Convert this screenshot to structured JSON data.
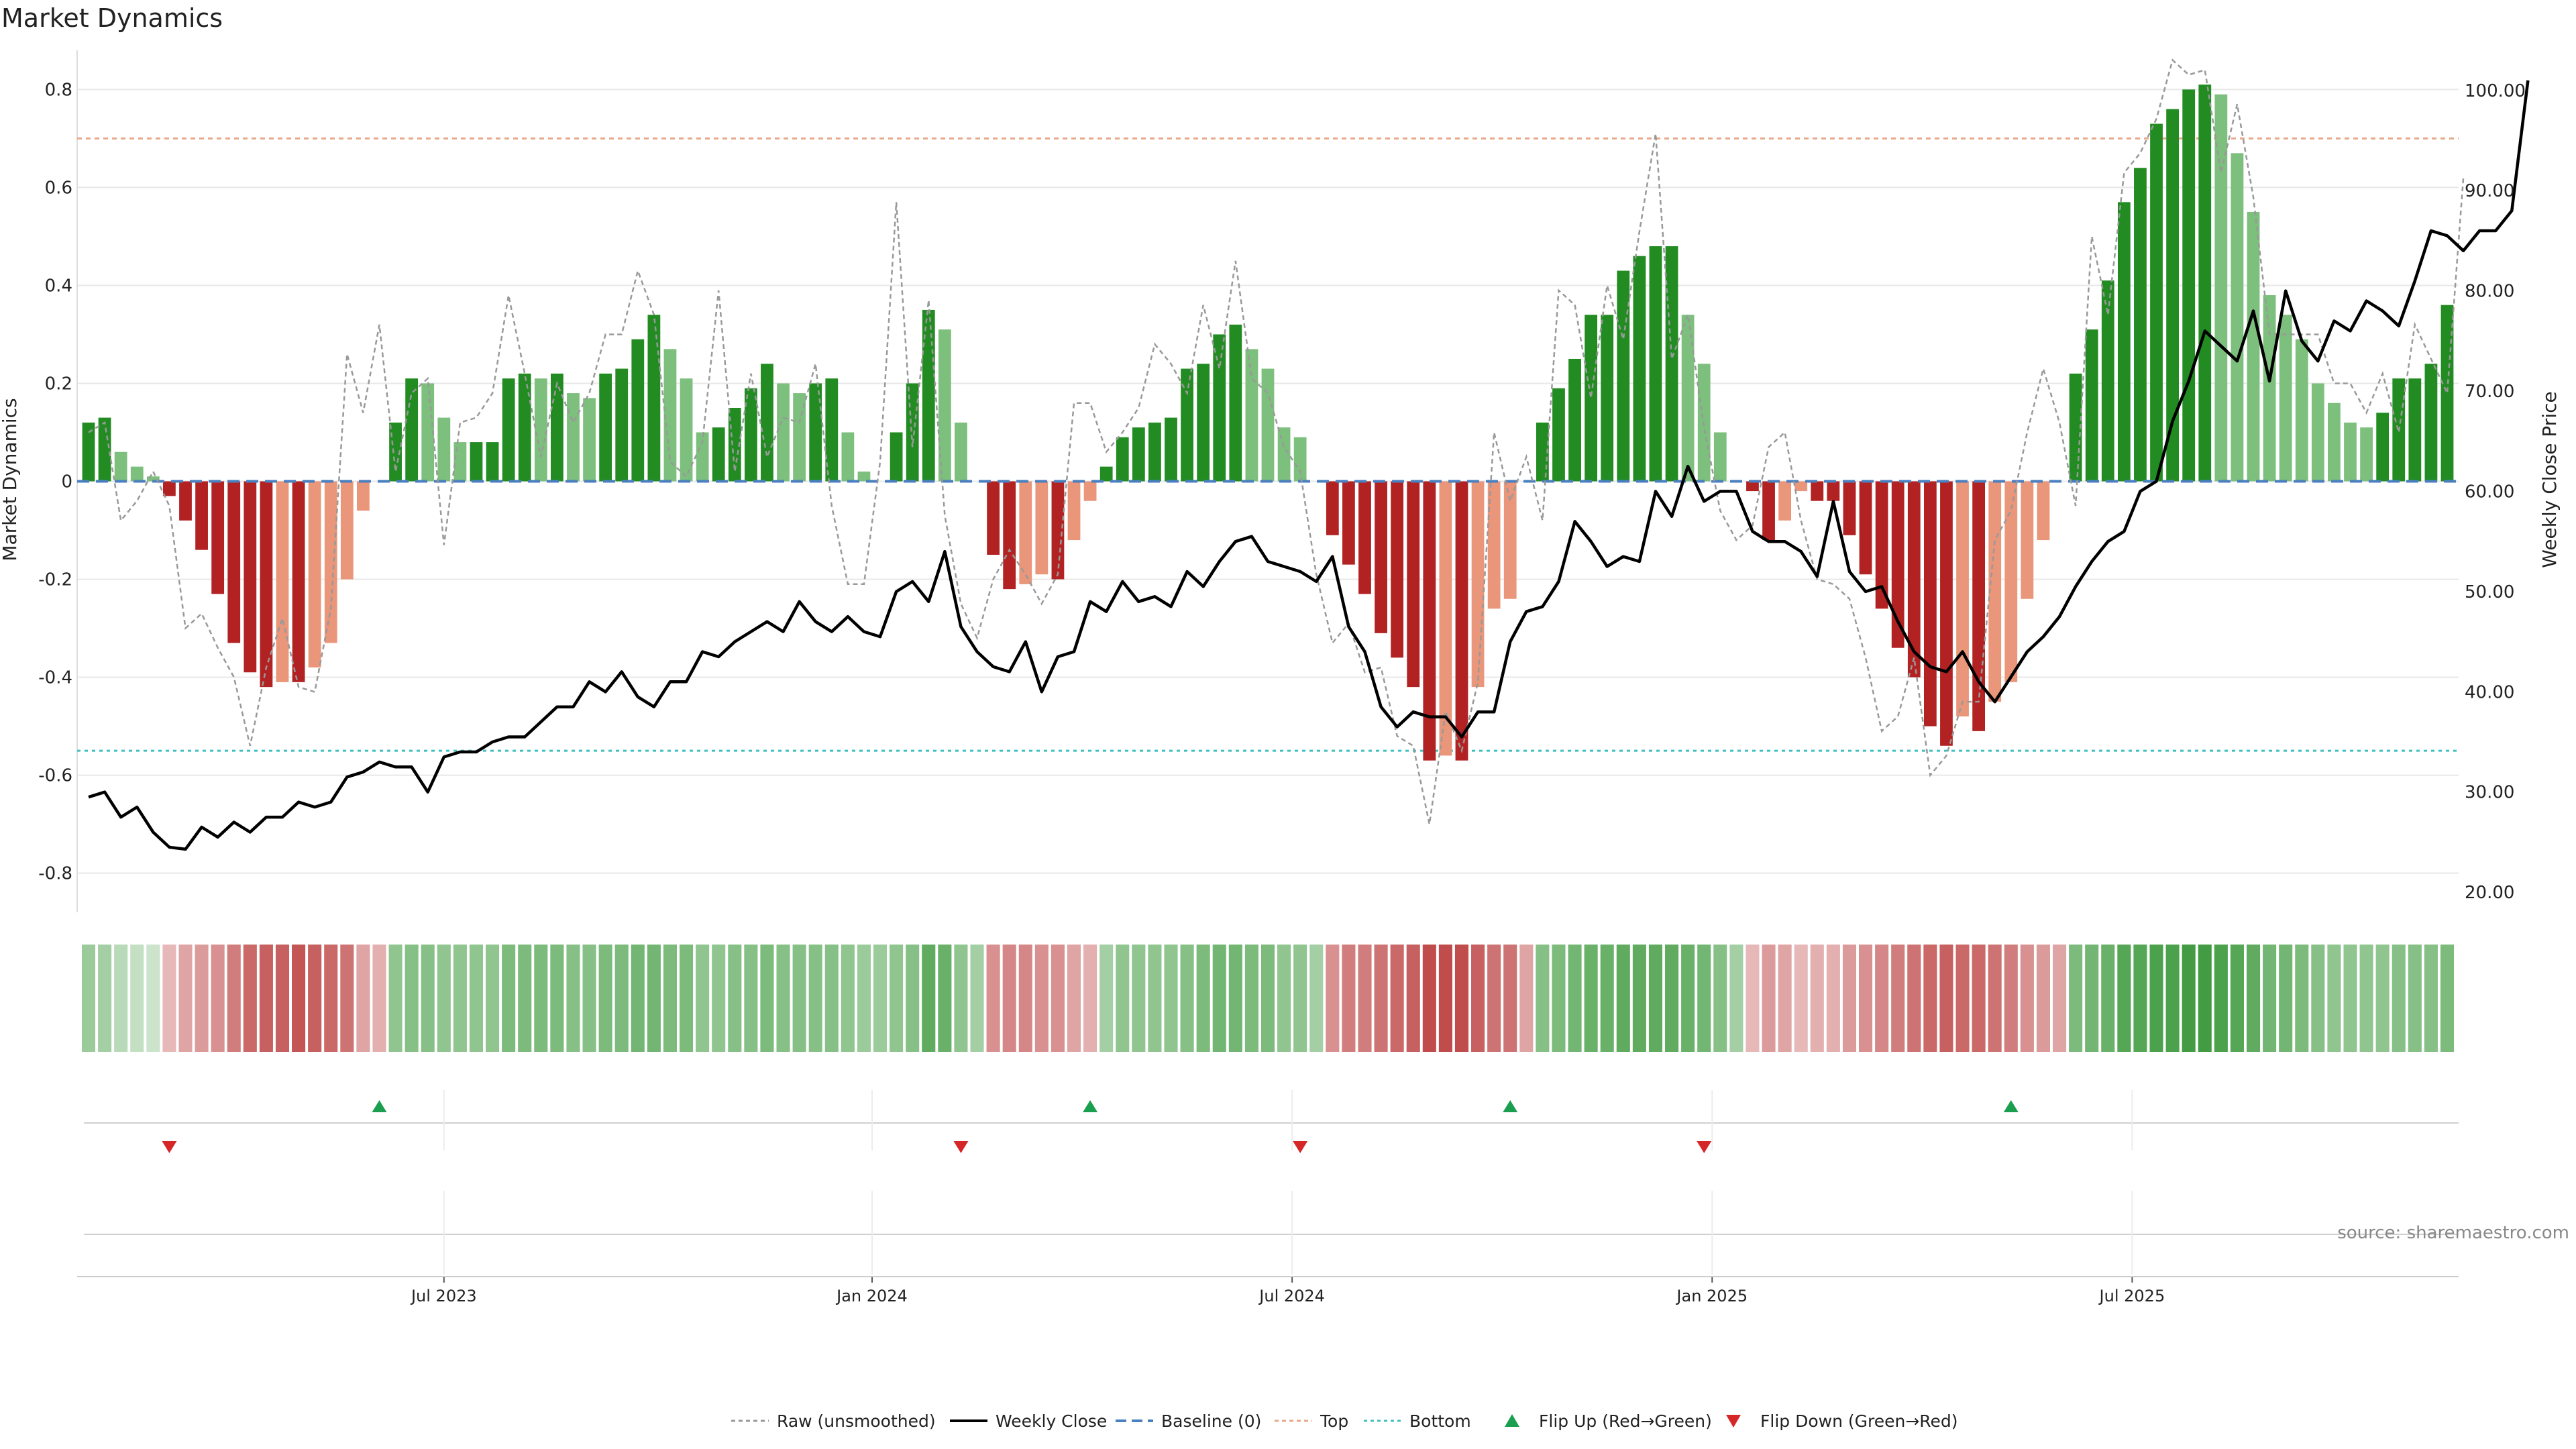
{
  "title": "Market Dynamics",
  "source_note": "source: sharemaestro.com",
  "colors": {
    "green_strong": "#228b22",
    "green_light": "#7dbf7d",
    "red_strong": "#b22222",
    "red_light": "#e9967a",
    "top_line": "#e8a88a",
    "bottom_line": "#40c0c0",
    "baseline": "#4a7fc0",
    "raw": "#999999",
    "close": "#000000",
    "flip_up": "#1a9e50",
    "flip_down": "#d62728"
  },
  "chart_data": {
    "type": "bar",
    "title": "Market Dynamics",
    "ylabel_left": "Market Dynamics",
    "ylabel_right": "Weekly Close Price",
    "ylim_left": [
      -0.88,
      0.88
    ],
    "ylim_right": [
      18,
      104
    ],
    "y_left_ticks": [
      {
        "v": 0.8,
        "label": "0.8"
      },
      {
        "v": 0.6,
        "label": "0.6"
      },
      {
        "v": 0.4,
        "label": "0.4"
      },
      {
        "v": 0.2,
        "label": "0.2"
      },
      {
        "v": 0,
        "label": "0"
      },
      {
        "v": -0.2,
        "label": "-0.2"
      },
      {
        "v": -0.4,
        "label": "-0.4"
      },
      {
        "v": -0.6,
        "label": "-0.6"
      },
      {
        "v": -0.8,
        "label": "-0.8"
      }
    ],
    "y_right_ticks": [
      {
        "v": 100,
        "label": "100.00"
      },
      {
        "v": 90,
        "label": "90.00"
      },
      {
        "v": 80,
        "label": "80.00"
      },
      {
        "v": 70,
        "label": "70.00"
      },
      {
        "v": 60,
        "label": "60.00"
      },
      {
        "v": 50,
        "label": "50.00"
      },
      {
        "v": 40,
        "label": "40.00"
      },
      {
        "v": 30,
        "label": "30.00"
      },
      {
        "v": 20,
        "label": "20.00"
      }
    ],
    "x_ticks": [
      {
        "i": 22,
        "label": "Jul 2023"
      },
      {
        "i": 48.5,
        "label": "Jan 2024"
      },
      {
        "i": 74.5,
        "label": "Jul 2024"
      },
      {
        "i": 100.5,
        "label": "Jan 2025"
      },
      {
        "i": 126.5,
        "label": "Jul 2025"
      }
    ],
    "top_threshold": 0.7,
    "bottom_threshold": -0.55,
    "smoothed": [
      0.12,
      0.13,
      0.06,
      0.03,
      0.01,
      -0.03,
      -0.08,
      -0.14,
      -0.23,
      -0.33,
      -0.39,
      -0.42,
      -0.41,
      -0.41,
      -0.38,
      -0.33,
      -0.2,
      -0.06,
      0,
      0.12,
      0.21,
      0.2,
      0.13,
      0.08,
      0.08,
      0.08,
      0.21,
      0.22,
      0.21,
      0.22,
      0.18,
      0.17,
      0.22,
      0.23,
      0.29,
      0.34,
      0.27,
      0.21,
      0.1,
      0.11,
      0.15,
      0.19,
      0.24,
      0.2,
      0.18,
      0.2,
      0.21,
      0.1,
      0.02,
      0,
      0.1,
      0.2,
      0.35,
      0.31,
      0.12,
      0,
      -0.15,
      -0.22,
      -0.21,
      -0.19,
      -0.2,
      -0.12,
      -0.04,
      0.03,
      0.09,
      0.11,
      0.12,
      0.13,
      0.23,
      0.24,
      0.3,
      0.32,
      0.27,
      0.23,
      0.11,
      0.09,
      0,
      -0.11,
      -0.17,
      -0.23,
      -0.31,
      -0.36,
      -0.42,
      -0.57,
      -0.56,
      -0.57,
      -0.42,
      -0.26,
      -0.24,
      0,
      0.12,
      0.19,
      0.25,
      0.34,
      0.34,
      0.43,
      0.46,
      0.48,
      0.48,
      0.34,
      0.24,
      0.1,
      0,
      -0.02,
      -0.12,
      -0.08,
      -0.02,
      -0.04,
      -0.04,
      -0.11,
      -0.19,
      -0.26,
      -0.34,
      -0.4,
      -0.5,
      -0.54,
      -0.48,
      -0.51,
      -0.45,
      -0.41,
      -0.24,
      -0.12,
      0,
      0.22,
      0.31,
      0.41,
      0.57,
      0.64,
      0.73,
      0.76,
      0.8,
      0.81,
      0.79,
      0.67,
      0.55,
      0.38,
      0.34,
      0.29,
      0.2,
      0.16,
      0.12,
      0.11,
      0.14,
      0.21,
      0.21,
      0.24,
      0.36
    ],
    "raw": [
      0.1,
      0.12,
      -0.08,
      -0.04,
      0.02,
      -0.05,
      -0.3,
      -0.27,
      -0.34,
      -0.4,
      -0.54,
      -0.38,
      -0.28,
      -0.42,
      -0.43,
      -0.26,
      0.26,
      0.14,
      0.32,
      0.02,
      0.18,
      0.21,
      -0.13,
      0.12,
      0.13,
      0.18,
      0.38,
      0.22,
      0.05,
      0.2,
      0.12,
      0.18,
      0.3,
      0.3,
      0.43,
      0.34,
      0.04,
      0.01,
      0.08,
      0.39,
      0.02,
      0.22,
      0.05,
      0.13,
      0.12,
      0.24,
      -0.05,
      -0.21,
      -0.21,
      0.04,
      0.57,
      0.07,
      0.37,
      -0.07,
      -0.25,
      -0.32,
      -0.2,
      -0.14,
      -0.19,
      -0.25,
      -0.19,
      0.16,
      0.16,
      0.06,
      0.1,
      0.15,
      0.28,
      0.24,
      0.18,
      0.36,
      0.23,
      0.45,
      0.21,
      0.18,
      0.07,
      0.02,
      -0.19,
      -0.33,
      -0.29,
      -0.39,
      -0.38,
      -0.52,
      -0.54,
      -0.7,
      -0.47,
      -0.55,
      -0.41,
      0.1,
      -0.04,
      0.05,
      -0.08,
      0.39,
      0.36,
      0.17,
      0.4,
      0.29,
      0.51,
      0.71,
      0.25,
      0.34,
      0.11,
      -0.06,
      -0.12,
      -0.09,
      0.07,
      0.1,
      -0.08,
      -0.2,
      -0.21,
      -0.24,
      -0.36,
      -0.51,
      -0.48,
      -0.36,
      -0.6,
      -0.56,
      -0.45,
      -0.45,
      -0.12,
      -0.06,
      0.1,
      0.23,
      0.12,
      -0.05,
      0.5,
      0.34,
      0.63,
      0.67,
      0.74,
      0.86,
      0.83,
      0.84,
      0.63,
      0.77,
      0.58,
      0.3,
      0.3,
      0.3,
      0.3,
      0.2,
      0.2,
      0.14,
      0.22,
      0.1,
      0.32,
      0.25,
      0.18,
      0.62
    ],
    "close": [
      29.5,
      30,
      27.5,
      28.5,
      26,
      24.5,
      24.3,
      26.5,
      25.5,
      27,
      26,
      27.5,
      27.5,
      29,
      28.5,
      29,
      31.5,
      32,
      33,
      32.5,
      32.5,
      30,
      33.5,
      34,
      34,
      35,
      35.5,
      35.5,
      37,
      38.5,
      38.5,
      41,
      40,
      42,
      39.5,
      38.5,
      41,
      41,
      44,
      43.5,
      45,
      46,
      47,
      46,
      49,
      47,
      46,
      47.5,
      46,
      45.5,
      50,
      51,
      49,
      54,
      46.5,
      44,
      42.5,
      42,
      45,
      40,
      43.5,
      44,
      49,
      48,
      51,
      49,
      49.5,
      48.5,
      52,
      50.5,
      53,
      55,
      55.5,
      53,
      52.5,
      52,
      51,
      53.5,
      46.5,
      44,
      38.5,
      36.5,
      38,
      37.5,
      37.5,
      35.5,
      38,
      38,
      45,
      48,
      48.5,
      51,
      57,
      55,
      52.5,
      53.5,
      53,
      60,
      57.5,
      62.5,
      59,
      60,
      60,
      56,
      55,
      55,
      54,
      51.5,
      59,
      52,
      50,
      50.5,
      47,
      44,
      42.5,
      42,
      44,
      41,
      39,
      41.5,
      44,
      45.5,
      47.5,
      50.5,
      53,
      55,
      56,
      60,
      61,
      67,
      71,
      76,
      74.5,
      73,
      78,
      71,
      80,
      75,
      73,
      77,
      76,
      79,
      78,
      76.5,
      81,
      86,
      85.5,
      84,
      86,
      86,
      88,
      101
    ],
    "heat_levels": [
      0.5,
      0.45,
      0.35,
      0.3,
      0.25,
      0.35,
      0.45,
      0.5,
      0.55,
      0.65,
      0.75,
      0.8,
      0.8,
      0.85,
      0.8,
      0.75,
      0.7,
      0.45,
      0.4,
      0.55,
      0.6,
      0.6,
      0.55,
      0.55,
      0.55,
      0.55,
      0.65,
      0.65,
      0.65,
      0.65,
      0.6,
      0.6,
      0.65,
      0.65,
      0.7,
      0.7,
      0.65,
      0.65,
      0.55,
      0.55,
      0.6,
      0.6,
      0.65,
      0.6,
      0.6,
      0.6,
      0.6,
      0.55,
      0.5,
      0.5,
      0.55,
      0.6,
      0.8,
      0.75,
      0.55,
      0.45,
      0.55,
      0.6,
      0.6,
      0.55,
      0.55,
      0.45,
      0.4,
      0.45,
      0.55,
      0.55,
      0.55,
      0.55,
      0.6,
      0.65,
      0.7,
      0.7,
      0.65,
      0.65,
      0.55,
      0.55,
      0.45,
      0.55,
      0.65,
      0.65,
      0.7,
      0.75,
      0.8,
      0.9,
      0.9,
      0.9,
      0.8,
      0.7,
      0.7,
      0.45,
      0.6,
      0.65,
      0.7,
      0.75,
      0.75,
      0.8,
      0.8,
      0.8,
      0.8,
      0.75,
      0.7,
      0.6,
      0.45,
      0.35,
      0.5,
      0.45,
      0.35,
      0.4,
      0.4,
      0.5,
      0.55,
      0.6,
      0.65,
      0.7,
      0.75,
      0.8,
      0.75,
      0.75,
      0.7,
      0.65,
      0.55,
      0.5,
      0.45,
      0.65,
      0.7,
      0.75,
      0.85,
      0.85,
      0.9,
      0.9,
      0.95,
      0.95,
      0.9,
      0.85,
      0.8,
      0.7,
      0.7,
      0.65,
      0.6,
      0.55,
      0.55,
      0.55,
      0.55,
      0.6,
      0.6,
      0.6,
      0.65
    ],
    "flip_up": [
      18,
      62,
      88,
      119
    ],
    "flip_down": [
      5,
      54,
      75,
      100
    ]
  },
  "legend": {
    "raw": "Raw (unsmoothed)",
    "close": "Weekly Close",
    "baseline": "Baseline (0)",
    "top": "Top",
    "bottom": "Bottom",
    "flip_up": "Flip Up (Red→Green)",
    "flip_down": "Flip Down (Green→Red)"
  }
}
